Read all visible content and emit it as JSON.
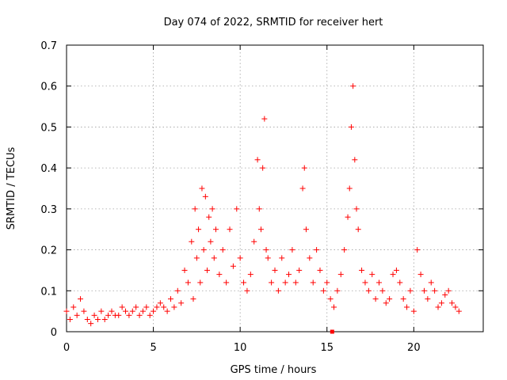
{
  "chart_data": {
    "type": "scatter",
    "title": "Day 074 of 2022, SRMTID for receiver hert",
    "xlabel": "GPS time / hours",
    "ylabel": "SRMTID / TECUs",
    "xlim": [
      0,
      24
    ],
    "ylim": [
      0,
      0.7
    ],
    "x_ticks": [
      0,
      5,
      10,
      15,
      20
    ],
    "x_tick_labels": [
      "0",
      "5",
      "10",
      "15",
      "20"
    ],
    "y_ticks": [
      0,
      0.1,
      0.2,
      0.3,
      0.4,
      0.5,
      0.6,
      0.7
    ],
    "y_tick_labels": [
      "0",
      "0.1",
      "0.2",
      "0.3",
      "0.4",
      "0.5",
      "0.6",
      "0.7"
    ],
    "grid": true,
    "marker": "+",
    "color": "#ff0000",
    "series": [
      {
        "name": "SRMTID",
        "points": [
          [
            0.0,
            0.05
          ],
          [
            0.2,
            0.03
          ],
          [
            0.4,
            0.06
          ],
          [
            0.6,
            0.04
          ],
          [
            0.8,
            0.08
          ],
          [
            1.0,
            0.05
          ],
          [
            1.2,
            0.03
          ],
          [
            1.4,
            0.02
          ],
          [
            1.6,
            0.04
          ],
          [
            1.8,
            0.03
          ],
          [
            2.0,
            0.05
          ],
          [
            2.2,
            0.03
          ],
          [
            2.4,
            0.04
          ],
          [
            2.6,
            0.05
          ],
          [
            2.8,
            0.04
          ],
          [
            3.0,
            0.04
          ],
          [
            3.2,
            0.06
          ],
          [
            3.4,
            0.05
          ],
          [
            3.6,
            0.04
          ],
          [
            3.8,
            0.05
          ],
          [
            4.0,
            0.06
          ],
          [
            4.2,
            0.04
          ],
          [
            4.4,
            0.05
          ],
          [
            4.6,
            0.06
          ],
          [
            4.8,
            0.04
          ],
          [
            5.0,
            0.05
          ],
          [
            5.2,
            0.06
          ],
          [
            5.4,
            0.07
          ],
          [
            5.6,
            0.06
          ],
          [
            5.8,
            0.05
          ],
          [
            6.0,
            0.08
          ],
          [
            6.2,
            0.06
          ],
          [
            6.4,
            0.1
          ],
          [
            6.6,
            0.07
          ],
          [
            6.8,
            0.15
          ],
          [
            7.0,
            0.12
          ],
          [
            7.2,
            0.22
          ],
          [
            7.3,
            0.08
          ],
          [
            7.4,
            0.3
          ],
          [
            7.5,
            0.18
          ],
          [
            7.6,
            0.25
          ],
          [
            7.7,
            0.12
          ],
          [
            7.8,
            0.35
          ],
          [
            7.9,
            0.2
          ],
          [
            8.0,
            0.33
          ],
          [
            8.1,
            0.15
          ],
          [
            8.2,
            0.28
          ],
          [
            8.3,
            0.22
          ],
          [
            8.4,
            0.3
          ],
          [
            8.5,
            0.18
          ],
          [
            8.6,
            0.25
          ],
          [
            8.8,
            0.14
          ],
          [
            9.0,
            0.2
          ],
          [
            9.2,
            0.12
          ],
          [
            9.4,
            0.25
          ],
          [
            9.6,
            0.16
          ],
          [
            9.8,
            0.3
          ],
          [
            10.0,
            0.18
          ],
          [
            10.2,
            0.12
          ],
          [
            10.4,
            0.1
          ],
          [
            10.6,
            0.14
          ],
          [
            10.8,
            0.22
          ],
          [
            11.0,
            0.42
          ],
          [
            11.1,
            0.3
          ],
          [
            11.2,
            0.25
          ],
          [
            11.3,
            0.4
          ],
          [
            11.4,
            0.52
          ],
          [
            11.5,
            0.2
          ],
          [
            11.6,
            0.18
          ],
          [
            11.8,
            0.12
          ],
          [
            12.0,
            0.15
          ],
          [
            12.2,
            0.1
          ],
          [
            12.4,
            0.18
          ],
          [
            12.6,
            0.12
          ],
          [
            12.8,
            0.14
          ],
          [
            13.0,
            0.2
          ],
          [
            13.2,
            0.12
          ],
          [
            13.4,
            0.15
          ],
          [
            13.6,
            0.35
          ],
          [
            13.7,
            0.4
          ],
          [
            13.8,
            0.25
          ],
          [
            14.0,
            0.18
          ],
          [
            14.2,
            0.12
          ],
          [
            14.4,
            0.2
          ],
          [
            14.6,
            0.15
          ],
          [
            14.8,
            0.1
          ],
          [
            15.0,
            0.12
          ],
          [
            15.2,
            0.08
          ],
          [
            15.4,
            0.06
          ],
          [
            15.6,
            0.1
          ],
          [
            15.8,
            0.14
          ],
          [
            16.0,
            0.2
          ],
          [
            16.2,
            0.28
          ],
          [
            16.3,
            0.35
          ],
          [
            16.4,
            0.5
          ],
          [
            16.5,
            0.6
          ],
          [
            16.6,
            0.42
          ],
          [
            16.7,
            0.3
          ],
          [
            16.8,
            0.25
          ],
          [
            17.0,
            0.15
          ],
          [
            17.2,
            0.12
          ],
          [
            17.4,
            0.1
          ],
          [
            17.6,
            0.14
          ],
          [
            17.8,
            0.08
          ],
          [
            18.0,
            0.12
          ],
          [
            18.2,
            0.1
          ],
          [
            18.4,
            0.07
          ],
          [
            18.6,
            0.08
          ],
          [
            18.8,
            0.14
          ],
          [
            19.0,
            0.15
          ],
          [
            19.2,
            0.12
          ],
          [
            19.4,
            0.08
          ],
          [
            19.6,
            0.06
          ],
          [
            19.8,
            0.1
          ],
          [
            20.0,
            0.05
          ],
          [
            20.2,
            0.2
          ],
          [
            20.4,
            0.14
          ],
          [
            20.6,
            0.1
          ],
          [
            20.8,
            0.08
          ],
          [
            21.0,
            0.12
          ],
          [
            21.2,
            0.1
          ],
          [
            21.4,
            0.06
          ],
          [
            21.6,
            0.07
          ],
          [
            21.8,
            0.09
          ],
          [
            22.0,
            0.1
          ],
          [
            22.2,
            0.07
          ],
          [
            22.4,
            0.06
          ],
          [
            22.6,
            0.05
          ]
        ]
      }
    ],
    "marker_point": [
      15.3,
      0.0
    ]
  }
}
